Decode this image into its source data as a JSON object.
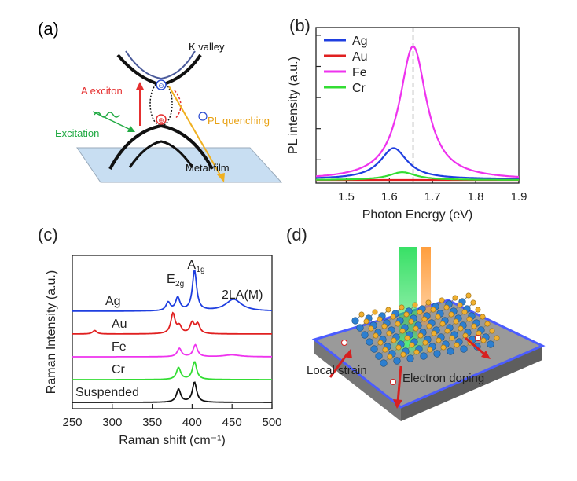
{
  "panels": {
    "a": {
      "label": "(a)",
      "k_valley": "K valley",
      "a_exciton": "A exciton",
      "excitation": "Excitation",
      "pl_quenching": "PL quenching",
      "metal_film": "Metal film",
      "electron_symbol": "⊝",
      "hole_symbol": "⊕"
    },
    "b": {
      "label": "(b)"
    },
    "c": {
      "label": "(c)"
    },
    "d": {
      "label": "(d)",
      "local_strain": "Local strain",
      "electron_doping": "Electron doping"
    }
  },
  "colors": {
    "Ag": "#1f3fe0",
    "Au": "#e02020",
    "Fe": "#ee33ee",
    "Cr": "#33dd33",
    "Suspended": "#111111"
  },
  "chart_data": [
    {
      "id": "b",
      "type": "line",
      "title": "",
      "xlabel": "Photon Energy (eV)",
      "ylabel": "PL intensity (a.u.)",
      "xlim": [
        1.43,
        1.9
      ],
      "ylim": [
        0,
        1.0
      ],
      "xticks": [
        1.5,
        1.6,
        1.7,
        1.8,
        1.9
      ],
      "xtick_labels": [
        "1.5",
        "1.6",
        "1.7",
        "1.8",
        "1.9"
      ],
      "legend": [
        "Ag",
        "Au",
        "Fe",
        "Cr"
      ],
      "legend_position": "top-left",
      "reference_line": {
        "x": 1.655,
        "style": "dashed"
      },
      "series": [
        {
          "name": "Ag",
          "peak_center": 1.61,
          "peak_height": 0.2,
          "baseline": 0.025
        },
        {
          "name": "Au",
          "peak_center": 1.61,
          "peak_height": 0.0,
          "baseline": 0.02
        },
        {
          "name": "Fe",
          "peak_center": 1.655,
          "peak_height": 0.86,
          "baseline": 0.02
        },
        {
          "name": "Cr",
          "peak_center": 1.63,
          "peak_height": 0.05,
          "baseline": 0.02
        }
      ]
    },
    {
      "id": "c",
      "type": "line",
      "title": "",
      "xlabel": "Raman shift (cm⁻¹)",
      "ylabel": "Raman Intensity (a.u.)",
      "xlim": [
        250,
        500
      ],
      "xticks": [
        250,
        300,
        350,
        400,
        450,
        500
      ],
      "xtick_labels": [
        "250",
        "300",
        "350",
        "400",
        "450",
        "500"
      ],
      "peak_labels": {
        "e2g_base": "E",
        "e2g_sub": "2g",
        "a1g_base": "A",
        "a1g_sub": "1g",
        "two_la": "2LA(M)"
      },
      "series": [
        {
          "name": "Ag",
          "offset": 4,
          "peaks": [
            [
              370,
              0.35
            ],
            [
              382,
              0.55
            ],
            [
              403,
              1.7
            ],
            [
              452,
              0.5
            ]
          ]
        },
        {
          "name": "Au",
          "offset": 3,
          "peaks": [
            [
              278,
              0.15
            ],
            [
              376,
              0.85
            ],
            [
              384,
              0.3
            ],
            [
              400,
              0.45
            ],
            [
              407,
              0.4
            ]
          ]
        },
        {
          "name": "Fe",
          "offset": 2,
          "peaks": [
            [
              384,
              0.35
            ],
            [
              404,
              0.5
            ],
            [
              450,
              0.08
            ]
          ]
        },
        {
          "name": "Cr",
          "offset": 1,
          "peaks": [
            [
              383,
              0.5
            ],
            [
              403,
              0.75
            ]
          ]
        },
        {
          "name": "Suspended",
          "offset": 0,
          "peaks": [
            [
              383,
              0.55
            ],
            [
              403,
              0.85
            ]
          ]
        }
      ]
    }
  ]
}
